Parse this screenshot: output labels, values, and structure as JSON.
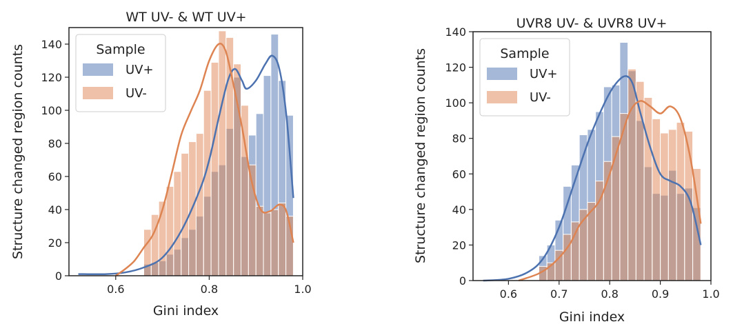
{
  "colors": {
    "uv_plus": "#4c72b0",
    "uv_minus": "#dd8452"
  },
  "chart_data": [
    {
      "type": "histogram",
      "title": "WT UV- & WT UV+",
      "xlabel": "Gini index",
      "ylabel": "Structure changed region counts",
      "xlim": [
        0.5,
        1.0
      ],
      "ylim": [
        0,
        150
      ],
      "xticks": [
        0.6,
        0.8,
        1.0
      ],
      "xtick_labels": [
        "0.6",
        "0.8",
        "1.0"
      ],
      "yticks": [
        0,
        20,
        40,
        60,
        80,
        100,
        120,
        140
      ],
      "ytick_labels": [
        "0",
        "20",
        "40",
        "60",
        "80",
        "100",
        "120",
        "140"
      ],
      "grid": false,
      "legend": {
        "title": "Sample",
        "placement": "top-left",
        "entries": [
          "UV+",
          "UV-"
        ]
      },
      "bin_edges": [
        0.66,
        0.676,
        0.692,
        0.708,
        0.724,
        0.74,
        0.756,
        0.772,
        0.788,
        0.804,
        0.82,
        0.836,
        0.852,
        0.868,
        0.884,
        0.9,
        0.916,
        0.932,
        0.948,
        0.964,
        0.98
      ],
      "series": [
        {
          "name": "UV+",
          "counts": [
            7,
            8,
            9,
            13,
            16,
            23,
            28,
            36,
            48,
            63,
            67,
            89,
            120,
            72,
            85,
            98,
            121,
            146,
            118,
            97
          ],
          "kde": {
            "x": [
              0.52,
              0.58,
              0.62,
              0.66,
              0.7,
              0.74,
              0.78,
              0.8,
              0.82,
              0.84,
              0.855,
              0.87,
              0.88,
              0.9,
              0.92,
              0.935,
              0.95,
              0.965,
              0.98
            ],
            "y": [
              1,
              1,
              2,
              5,
              11,
              27,
              52,
              70,
              95,
              118,
              125,
              118,
              113,
              118,
              128,
              133,
              125,
              97,
              47
            ]
          }
        },
        {
          "name": "UV-",
          "counts": [
            28,
            37,
            45,
            54,
            63,
            74,
            81,
            86,
            112,
            129,
            148,
            144,
            128,
            103,
            67,
            42,
            38,
            40,
            44,
            36
          ],
          "kde": {
            "x": [
              0.6,
              0.62,
              0.64,
              0.66,
              0.68,
              0.7,
              0.72,
              0.74,
              0.76,
              0.78,
              0.8,
              0.82,
              0.835,
              0.85,
              0.87,
              0.89,
              0.91,
              0.93,
              0.95,
              0.965,
              0.98
            ],
            "y": [
              0,
              4,
              9,
              17,
              25,
              40,
              62,
              85,
              99,
              112,
              130,
              140,
              136,
              118,
              90,
              58,
              40,
              39,
              43,
              39,
              20
            ]
          }
        }
      ]
    },
    {
      "type": "histogram",
      "title": "UVR8 UV- & UVR8 UV+",
      "xlabel": "Gini index",
      "ylabel": "Structure changed region counts",
      "xlim": [
        0.53,
        1.0
      ],
      "ylim": [
        0,
        140
      ],
      "xticks": [
        0.6,
        0.7,
        0.8,
        0.9,
        1.0
      ],
      "xtick_labels": [
        "0.6",
        "0.7",
        "0.8",
        "0.9",
        "1.0"
      ],
      "yticks": [
        0,
        20,
        40,
        60,
        80,
        100,
        120,
        140
      ],
      "ytick_labels": [
        "0",
        "20",
        "40",
        "60",
        "80",
        "100",
        "120",
        "140"
      ],
      "grid": false,
      "legend": {
        "title": "Sample",
        "placement": "top-left",
        "entries": [
          "UV+",
          "UV-"
        ]
      },
      "bin_edges": [
        0.66,
        0.676,
        0.692,
        0.708,
        0.724,
        0.74,
        0.756,
        0.772,
        0.788,
        0.804,
        0.82,
        0.836,
        0.852,
        0.868,
        0.884,
        0.9,
        0.916,
        0.932,
        0.948,
        0.964,
        0.98
      ],
      "series": [
        {
          "name": "UV+",
          "counts": [
            14,
            20,
            34,
            53,
            65,
            82,
            85,
            95,
            109,
            110,
            134,
            118,
            90,
            64,
            49,
            48,
            62,
            49,
            52,
            41
          ],
          "kde": {
            "x": [
              0.55,
              0.6,
              0.64,
              0.67,
              0.7,
              0.73,
              0.76,
              0.79,
              0.81,
              0.83,
              0.845,
              0.86,
              0.88,
              0.9,
              0.92,
              0.94,
              0.96,
              0.98
            ],
            "y": [
              0,
              1,
              5,
              13,
              30,
              55,
              80,
              100,
              110,
              115,
              111,
              95,
              75,
              60,
              56,
              53,
              44,
              20
            ]
          }
        },
        {
          "name": "UV-",
          "counts": [
            8,
            10,
            17,
            26,
            33,
            40,
            44,
            56,
            67,
            81,
            94,
            119,
            112,
            103,
            91,
            83,
            85,
            89,
            84,
            63
          ],
          "kde": {
            "x": [
              0.62,
              0.66,
              0.69,
              0.72,
              0.74,
              0.76,
              0.78,
              0.8,
              0.82,
              0.84,
              0.86,
              0.88,
              0.9,
              0.92,
              0.94,
              0.96,
              0.98
            ],
            "y": [
              0,
              4,
              10,
              20,
              31,
              38,
              45,
              60,
              78,
              95,
              101,
              98,
              94,
              98,
              91,
              68,
              32
            ]
          }
        }
      ]
    }
  ]
}
